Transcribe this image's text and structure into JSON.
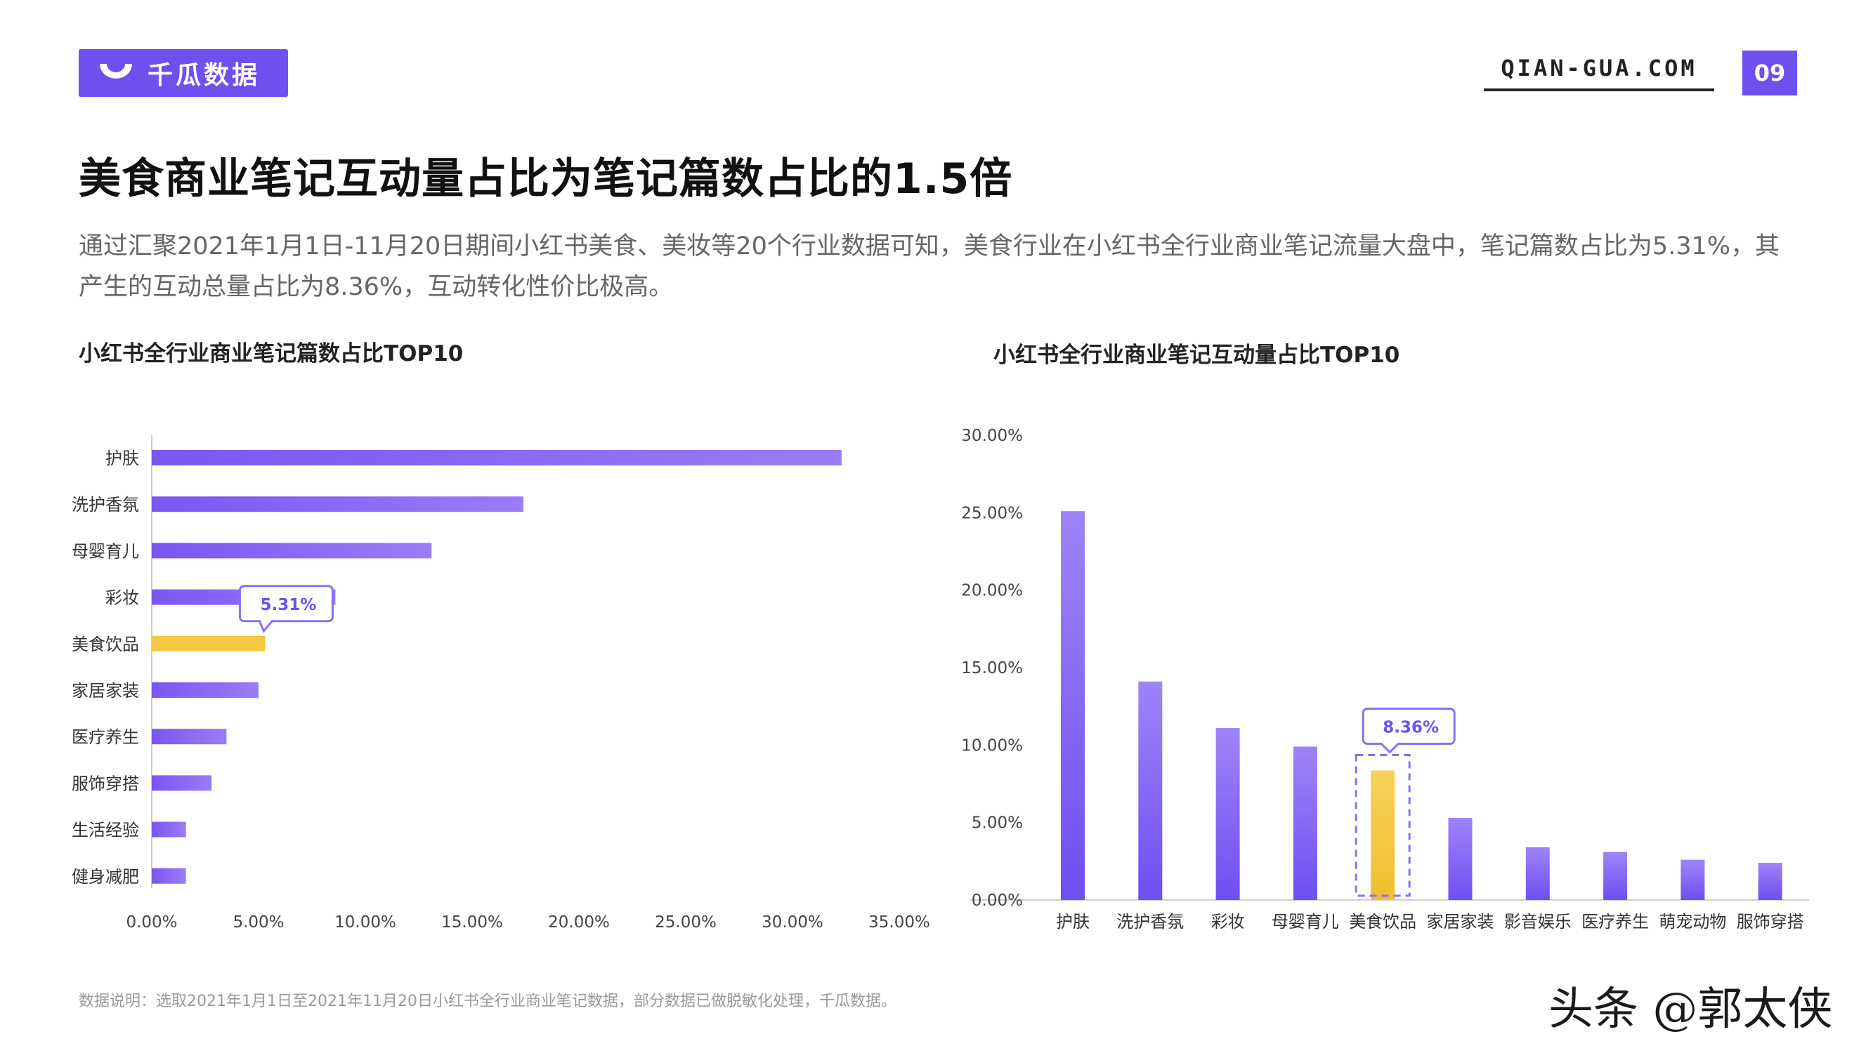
{
  "header": {
    "logo_text": "千瓜数据",
    "site": "QIAN-GUA.COM",
    "page_number": "09"
  },
  "title": "美食商业笔记互动量占比为笔记篇数占比的1.5倍",
  "intro": "通过汇聚2021年1月1日-11月20日期间小红书美食、美妆等20个行业数据可知，美食行业在小红书全行业商业笔记流量大盘中，笔记篇数占比为5.31%，其产生的互动总量占比为8.36%，互动转化性价比极高。",
  "footnote": "数据说明：选取2021年1月1日至2021年11月20日小红书全行业商业笔记数据，部分数据已做脱敏化处理，千瓜数据。",
  "watermark": "头条 @郭太侠",
  "colors": {
    "accent": "#6e4ff0",
    "bar": "#7b5cf5",
    "highlight": "#f5c842"
  },
  "chart_data": [
    {
      "type": "bar",
      "orientation": "horizontal",
      "title": "小红书全行业商业笔记篇数占比TOP10",
      "categories": [
        "护肤",
        "洗护香氛",
        "母婴育儿",
        "彩妆",
        "美食饮品",
        "家居家装",
        "医疗养生",
        "服饰穿搭",
        "生活经验",
        "健身减肥"
      ],
      "values": [
        32.3,
        17.4,
        13.1,
        8.6,
        5.31,
        5.0,
        3.5,
        2.8,
        1.6,
        1.6
      ],
      "highlight_category": "美食饮品",
      "callout": "5.31%",
      "xlim": [
        0,
        35
      ],
      "x_ticks": [
        "0.00%",
        "5.00%",
        "10.00%",
        "15.00%",
        "20.00%",
        "25.00%",
        "30.00%",
        "35.00%"
      ]
    },
    {
      "type": "bar",
      "orientation": "vertical",
      "title": "小红书全行业商业笔记互动量占比TOP10",
      "categories": [
        "护肤",
        "洗护香氛",
        "彩妆",
        "母婴育儿",
        "美食饮品",
        "家居家装",
        "影音娱乐",
        "医疗养生",
        "萌宠动物",
        "服饰穿搭"
      ],
      "values": [
        25.1,
        14.1,
        11.1,
        9.9,
        8.36,
        5.3,
        3.4,
        3.1,
        2.6,
        2.4
      ],
      "highlight_category": "美食饮品",
      "callout": "8.36%",
      "ylim": [
        0,
        30
      ],
      "y_ticks": [
        "0.00%",
        "5.00%",
        "10.00%",
        "15.00%",
        "20.00%",
        "25.00%",
        "30.00%"
      ]
    }
  ]
}
